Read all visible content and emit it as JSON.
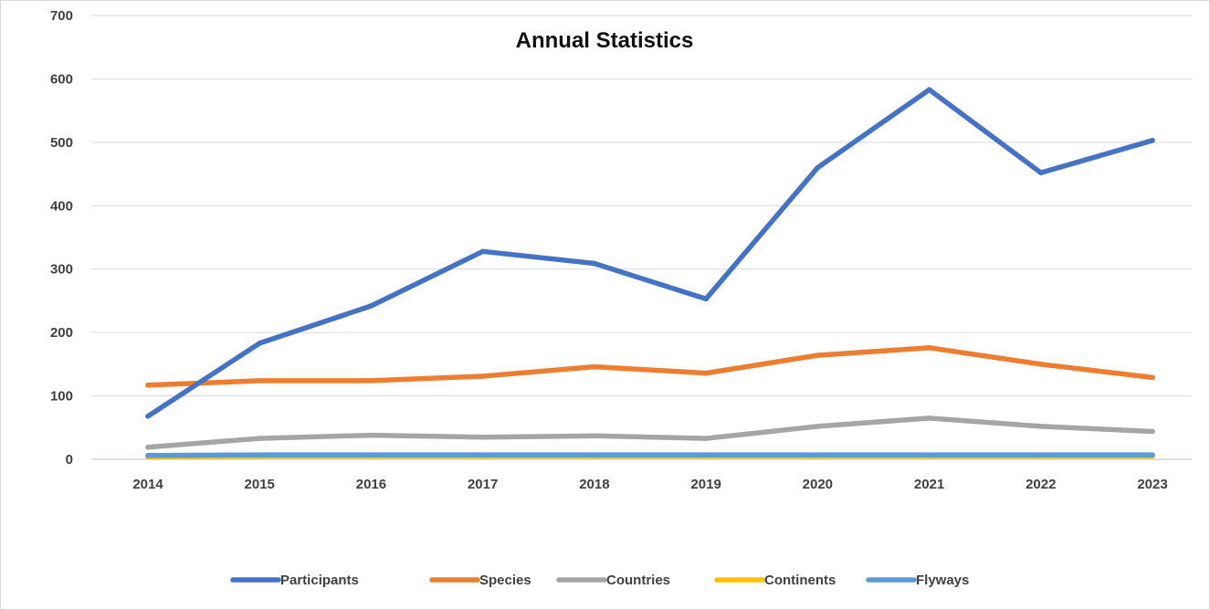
{
  "chart_data": {
    "type": "line",
    "title": "Annual Statistics",
    "xlabel": "",
    "ylabel": "",
    "ylim": [
      0,
      700
    ],
    "yticks": [
      0,
      100,
      200,
      300,
      400,
      500,
      600,
      700
    ],
    "grid": "horizontal",
    "legend_position": "bottom",
    "categories": [
      "2014",
      "2015",
      "2016",
      "2017",
      "2018",
      "2019",
      "2020",
      "2021",
      "2022",
      "2023"
    ],
    "series": [
      {
        "name": "Participants",
        "color": "#4472C4",
        "values": [
          68,
          183,
          242,
          328,
          309,
          253,
          460,
          583,
          452,
          503
        ]
      },
      {
        "name": "Species",
        "color": "#ED7D31",
        "values": [
          117,
          124,
          124,
          131,
          146,
          136,
          164,
          176,
          150,
          129
        ]
      },
      {
        "name": "Countries",
        "color": "#A5A5A5",
        "values": [
          19,
          33,
          38,
          35,
          37,
          33,
          52,
          65,
          52,
          44
        ]
      },
      {
        "name": "Continents",
        "color": "#FFC000",
        "values": [
          4,
          5,
          5,
          5,
          5,
          5,
          5,
          5,
          5,
          5
        ]
      },
      {
        "name": "Flyways",
        "color": "#5B9BD5",
        "values": [
          6,
          7,
          7,
          7,
          7,
          7,
          7,
          7,
          7,
          7
        ]
      }
    ]
  }
}
